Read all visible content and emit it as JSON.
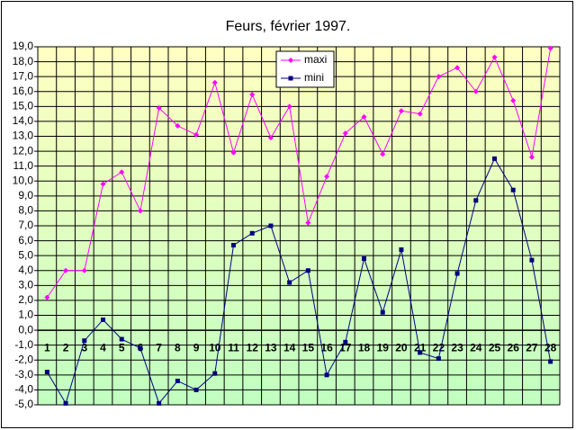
{
  "chart_data": {
    "type": "line",
    "title": "Feurs, février 1997.",
    "categories": [
      "1",
      "2",
      "3",
      "4",
      "5",
      "6",
      "7",
      "8",
      "9",
      "10",
      "11",
      "12",
      "13",
      "14",
      "15",
      "16",
      "17",
      "18",
      "19",
      "20",
      "21",
      "22",
      "23",
      "24",
      "25",
      "26",
      "27",
      "28"
    ],
    "series": [
      {
        "name": "maxi",
        "color": "#ff00ff",
        "marker": "diamond",
        "values": [
          2.2,
          4.0,
          4.0,
          9.8,
          10.6,
          8.0,
          14.9,
          13.7,
          13.1,
          16.6,
          11.9,
          15.8,
          12.9,
          15.0,
          7.2,
          10.3,
          13.2,
          14.3,
          11.8,
          14.7,
          14.5,
          17.0,
          17.6,
          16.0,
          18.3,
          15.4,
          11.6,
          18.9
        ]
      },
      {
        "name": "mini",
        "color": "#000080",
        "marker": "square",
        "values": [
          -2.8,
          -4.9,
          -0.7,
          0.7,
          -0.6,
          -1.2,
          -4.9,
          -3.4,
          -4.0,
          -2.9,
          5.7,
          6.5,
          7.0,
          3.2,
          4.0,
          -3.0,
          -0.8,
          4.8,
          1.2,
          5.4,
          -1.5,
          -1.9,
          3.8,
          8.7,
          11.5,
          9.4,
          4.7,
          -2.1
        ]
      }
    ],
    "ylim": [
      -5,
      19
    ],
    "yticks": [
      {
        "value": -5,
        "label": "-5,0"
      },
      {
        "value": -4,
        "label": "-4,0"
      },
      {
        "value": -3,
        "label": "-3,0"
      },
      {
        "value": -2,
        "label": "-2,0"
      },
      {
        "value": -1,
        "label": "-1,0"
      },
      {
        "value": 0,
        "label": "0,0"
      },
      {
        "value": 1,
        "label": "1,0"
      },
      {
        "value": 2,
        "label": "2,0"
      },
      {
        "value": 3,
        "label": "3,0"
      },
      {
        "value": 4,
        "label": "4,0"
      },
      {
        "value": 5,
        "label": "5,0"
      },
      {
        "value": 6,
        "label": "6,0"
      },
      {
        "value": 7,
        "label": "7,0"
      },
      {
        "value": 8,
        "label": "8,0"
      },
      {
        "value": 9,
        "label": "9,0"
      },
      {
        "value": 10,
        "label": "10,0"
      },
      {
        "value": 11,
        "label": "11,0"
      },
      {
        "value": 12,
        "label": "12,0"
      },
      {
        "value": 13,
        "label": "13,0"
      },
      {
        "value": 14,
        "label": "14,0"
      },
      {
        "value": 15,
        "label": "15,0"
      },
      {
        "value": 16,
        "label": "16,0"
      },
      {
        "value": 17,
        "label": "17,0"
      },
      {
        "value": 18,
        "label": "18,0"
      },
      {
        "value": 19,
        "label": "19,0"
      }
    ],
    "grid": true,
    "legend_position": "top"
  }
}
